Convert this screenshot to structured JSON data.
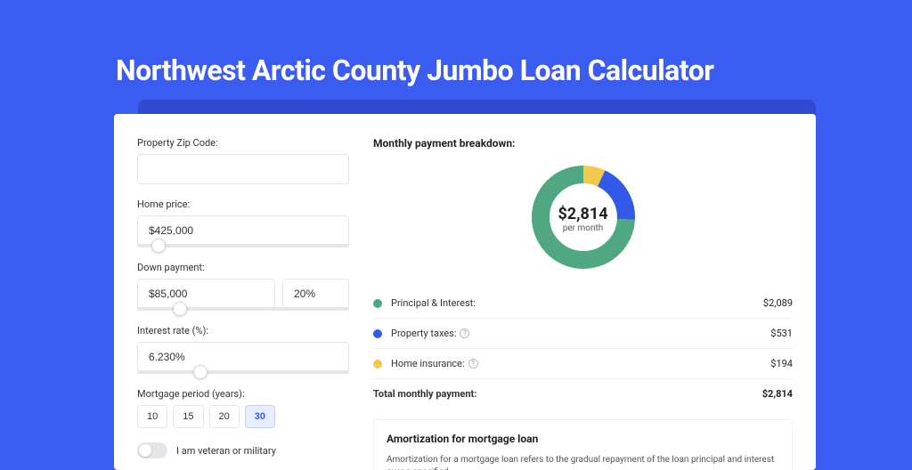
{
  "page": {
    "title": "Northwest Arctic County Jumbo Loan Calculator",
    "background_color": "#3a5cf0"
  },
  "form": {
    "zip": {
      "label": "Property Zip Code:",
      "value": ""
    },
    "home_price": {
      "label": "Home price:",
      "value": "$425,000",
      "slider_pct": 10
    },
    "down_payment": {
      "label": "Down payment:",
      "amount": "$85,000",
      "percent": "20%",
      "slider_pct": 20
    },
    "interest_rate": {
      "label": "Interest rate (%):",
      "value": "6.230%",
      "slider_pct": 30
    },
    "mortgage_period": {
      "label": "Mortgage period (years):",
      "options": [
        "10",
        "15",
        "20",
        "30"
      ],
      "selected": "30"
    },
    "veteran": {
      "label": "I am veteran or military",
      "checked": false
    }
  },
  "breakdown": {
    "title": "Monthly payment breakdown:",
    "center_amount": "$2,814",
    "center_sub": "per month",
    "items": [
      {
        "label": "Principal & Interest:",
        "value": "$2,089",
        "color": "#4fa882",
        "pct": 74.2,
        "info": false
      },
      {
        "label": "Property taxes:",
        "value": "$531",
        "color": "#3259e8",
        "pct": 18.9,
        "info": true
      },
      {
        "label": "Home insurance:",
        "value": "$194",
        "color": "#f2c94c",
        "pct": 6.9,
        "info": true
      }
    ],
    "total_label": "Total monthly payment:",
    "total_value": "$2,814",
    "donut": {
      "radius": 48,
      "stroke": 20,
      "background_color": "#ffffff"
    }
  },
  "amortization": {
    "title": "Amortization for mortgage loan",
    "body": "Amortization for a mortgage loan refers to the gradual repayment of the loan principal and interest over a specified"
  }
}
